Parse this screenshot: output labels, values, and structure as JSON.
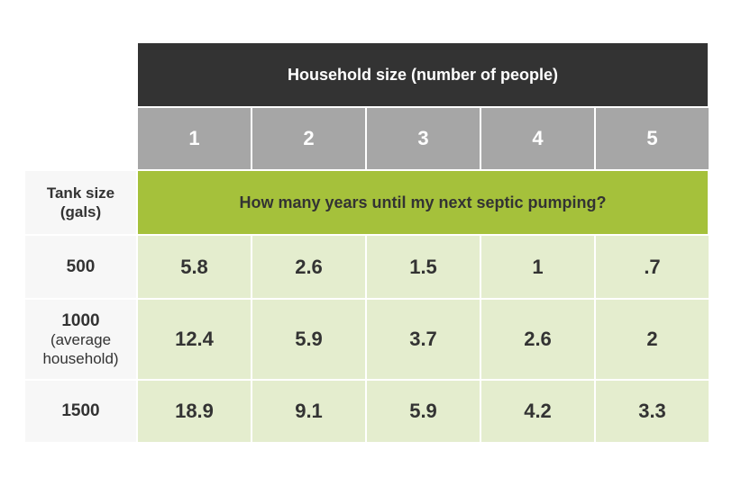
{
  "chart_data": {
    "type": "table",
    "column_group_header": "Household size (number of people)",
    "row_group_header": "Tank size\n(gals)",
    "value_header": "How many years until my next septic pumping?",
    "columns": [
      "1",
      "2",
      "3",
      "4",
      "5"
    ],
    "rows": [
      {
        "label": "500",
        "sublabel": "",
        "values": [
          "5.8",
          "2.6",
          "1.5",
          "1",
          ".7"
        ]
      },
      {
        "label": "1000",
        "sublabel": "(average\nhousehold)",
        "values": [
          "12.4",
          "5.9",
          "3.7",
          "2.6",
          "2"
        ]
      },
      {
        "label": "1500",
        "sublabel": "",
        "values": [
          "18.9",
          "9.1",
          "5.9",
          "4.2",
          "3.3"
        ]
      }
    ]
  },
  "colors": {
    "header_dark": "#333333",
    "column_header": "#a6a6a6",
    "accent_green": "#a5c13b",
    "value_cell": "#e4edce",
    "row_label_bg": "#f7f7f7",
    "text_dark": "#333333"
  }
}
